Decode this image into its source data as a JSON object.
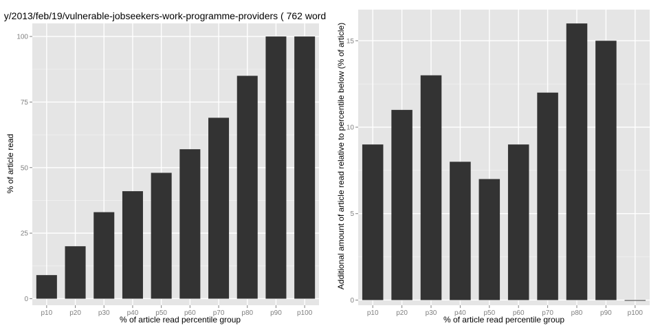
{
  "colors": {
    "panel_background": "#e5e5e5",
    "grid_major": "#ffffff",
    "grid_minor": "#f2f2f2",
    "bar_fill": "#333333",
    "tick_text": "#7f7f7f"
  },
  "chart_data": [
    {
      "type": "bar",
      "title": "y/2013/feb/19/vulnerable-jobseekers-work-programme-providers ( 762 word",
      "xlabel": "% of article read percentile group",
      "ylabel": "% of article read",
      "categories": [
        "p10",
        "p20",
        "p30",
        "p40",
        "p50",
        "p60",
        "p70",
        "p80",
        "p90",
        "p100"
      ],
      "values": [
        9,
        20,
        33,
        41,
        48,
        57,
        69,
        85,
        100,
        100
      ],
      "ylim": [
        -2.5,
        105
      ],
      "yticks": [
        0,
        25,
        50,
        75,
        100
      ],
      "grid": true
    },
    {
      "type": "bar",
      "title": "",
      "xlabel": "% of article read percentile group",
      "ylabel": "Additional amount of article read relative to percentile below (% of article)",
      "categories": [
        "p10",
        "p20",
        "p30",
        "p40",
        "p50",
        "p60",
        "p70",
        "p80",
        "p90",
        "p100"
      ],
      "values": [
        9,
        11,
        13,
        8,
        7,
        9,
        12,
        16,
        15,
        0
      ],
      "ylim": [
        -0.3,
        16.8
      ],
      "yticks": [
        0,
        5,
        10,
        15
      ],
      "grid": true
    }
  ]
}
